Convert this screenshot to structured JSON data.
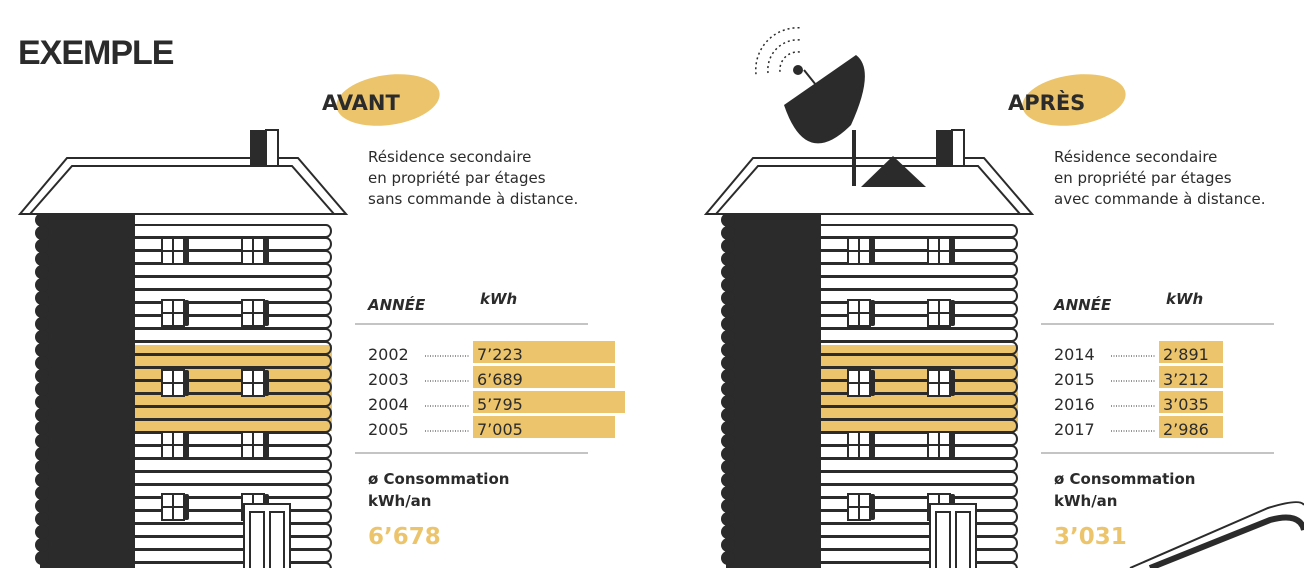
{
  "title": "EXEMPLE",
  "panels": [
    {
      "label": "AVANT",
      "description": [
        "Résidence secondaire",
        "en propriété par étages",
        "sans commande à distance."
      ],
      "table": {
        "headers": [
          "ANNÉE",
          "kWh"
        ],
        "rows": [
          [
            "2002",
            "7’223"
          ],
          [
            "2003",
            "6’689"
          ],
          [
            "2004",
            "5’795"
          ],
          [
            "2005",
            "7’005"
          ]
        ]
      },
      "average_label": [
        "ø Consommation",
        "kWh/an"
      ],
      "average_value": "6’678"
    },
    {
      "label": "APRÈS",
      "description": [
        "Résidence secondaire",
        "en propriété par étages",
        "avec commande à distance."
      ],
      "table": {
        "headers": [
          "ANNÉE",
          "kWh"
        ],
        "rows": [
          [
            "2014",
            "2’891"
          ],
          [
            "2015",
            "3’212"
          ],
          [
            "2016",
            "3’035"
          ],
          [
            "2017",
            "2’986"
          ]
        ]
      },
      "average_label": [
        "ø Consommation",
        "kWh/an"
      ],
      "average_value": "3’031"
    }
  ]
}
